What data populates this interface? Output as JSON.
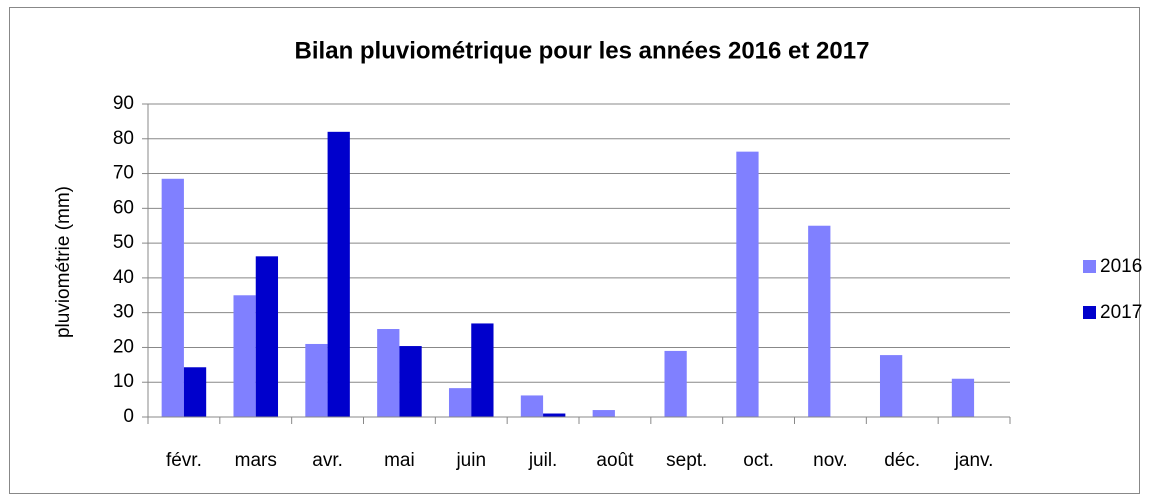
{
  "chart_data": {
    "type": "bar",
    "title": "Bilan pluviométrique pour les années 2016 et 2017",
    "ylabel": "pluviométrie (mm)",
    "categories": [
      "févr.",
      "mars",
      "avr.",
      "mai",
      "juin",
      "juil.",
      "août",
      "sept.",
      "oct.",
      "nov.",
      "déc.",
      "janv."
    ],
    "series": [
      {
        "name": "2016",
        "color": "#8080ff",
        "values": [
          68.5,
          35,
          21,
          25.3,
          8.3,
          6.2,
          2,
          19,
          76.3,
          55,
          17.8,
          11
        ]
      },
      {
        "name": "2017",
        "color": "#0000cc",
        "values": [
          14.3,
          46.2,
          82,
          20.4,
          26.9,
          1,
          null,
          null,
          null,
          null,
          null,
          null
        ]
      }
    ],
    "ylim": [
      0,
      90
    ],
    "yticks": [
      0,
      10,
      20,
      30,
      40,
      50,
      60,
      70,
      80,
      90
    ],
    "grid": true,
    "legend": "right"
  }
}
